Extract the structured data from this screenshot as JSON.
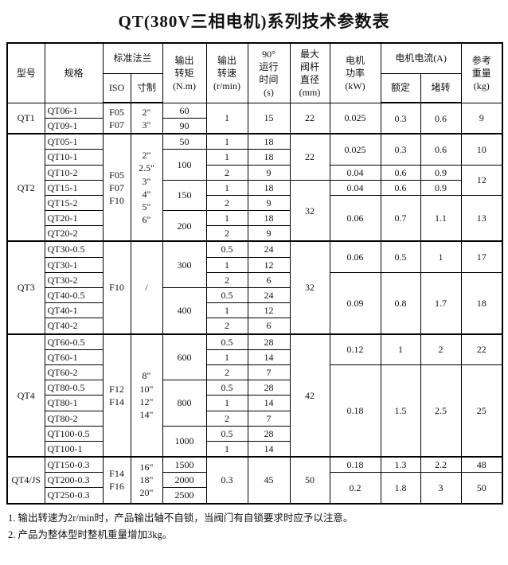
{
  "title": "QT(380V三相电机)系列技术参数表",
  "table": {
    "header": {
      "model": "型号",
      "spec": "规格",
      "flange": "标准法兰",
      "iso": "ISO",
      "inch": "寸制",
      "torque": "输出\n转矩\n(N.m)",
      "speed": "输出\n转速\n(r/min)",
      "time": "90°\n运行\n时间\n(s)",
      "stem": "最大\n阀杆\n直径\n(mm)",
      "power": "电机\n功率\n(kW)",
      "current": "电机电流(A)",
      "rated": "额定",
      "stall": "堵转",
      "weight": "参考\n重量\n(kg)"
    },
    "section_start_rows": [
      2,
      9,
      15,
      23
    ],
    "body_rows": [
      [
        {
          "t": "QT1",
          "rs": 2
        },
        {
          "t": "QT06-1",
          "cls": "spec"
        },
        {
          "t": "F05\nF07",
          "rs": 2
        },
        {
          "t": "2\"\n3\"",
          "rs": 2
        },
        {
          "t": "60"
        },
        {
          "t": "1",
          "rs": 2
        },
        {
          "t": "15",
          "rs": 2
        },
        {
          "t": "22",
          "rs": 2
        },
        {
          "t": "0.025",
          "rs": 2
        },
        {
          "t": "0.3",
          "rs": 2
        },
        {
          "t": "0.6",
          "rs": 2
        },
        {
          "t": "9",
          "rs": 2
        }
      ],
      [
        {
          "t": "QT09-1",
          "cls": "spec"
        },
        {
          "t": "90"
        }
      ],
      [
        {
          "t": "QT2",
          "rs": 7
        },
        {
          "t": "QT05-1",
          "cls": "spec"
        },
        {
          "t": "F05\nF07\nF10",
          "rs": 7
        },
        {
          "t": "2\"\n2.5\"\n3\"\n4\"\n5\"\n6\"",
          "rs": 7
        },
        {
          "t": "50"
        },
        {
          "t": "1"
        },
        {
          "t": "18"
        },
        {
          "t": "22",
          "rs": 3
        },
        {
          "t": "0.025",
          "rs": 2
        },
        {
          "t": "0.3",
          "rs": 2
        },
        {
          "t": "0.6",
          "rs": 2
        },
        {
          "t": "10",
          "rs": 2
        }
      ],
      [
        {
          "t": "QT10-1",
          "cls": "spec"
        },
        {
          "t": "100",
          "rs": 2
        },
        {
          "t": "1"
        },
        {
          "t": "18"
        }
      ],
      [
        {
          "t": "QT10-2",
          "cls": "spec"
        },
        {
          "t": "2"
        },
        {
          "t": "9"
        },
        {
          "t": "0.04"
        },
        {
          "t": "0.6"
        },
        {
          "t": "0.9"
        },
        {
          "t": "12",
          "rs": 2
        }
      ],
      [
        {
          "t": "QT15-1",
          "cls": "spec"
        },
        {
          "t": "150",
          "rs": 2
        },
        {
          "t": "1"
        },
        {
          "t": "18"
        },
        {
          "t": "32",
          "rs": 4
        },
        {
          "t": "0.04"
        },
        {
          "t": "0.6"
        },
        {
          "t": "0.9"
        }
      ],
      [
        {
          "t": "QT15-2",
          "cls": "spec"
        },
        {
          "t": "2"
        },
        {
          "t": "9"
        },
        {
          "t": "0.06",
          "rs": 3
        },
        {
          "t": "0.7",
          "rs": 3
        },
        {
          "t": "1.1",
          "rs": 3
        },
        {
          "t": "13",
          "rs": 3
        }
      ],
      [
        {
          "t": "QT20-1",
          "cls": "spec"
        },
        {
          "t": "200",
          "rs": 2
        },
        {
          "t": "1"
        },
        {
          "t": "18"
        }
      ],
      [
        {
          "t": "QT20-2",
          "cls": "spec"
        },
        {
          "t": "2"
        },
        {
          "t": "9"
        }
      ],
      [
        {
          "t": "QT3",
          "rs": 6
        },
        {
          "t": "QT30-0.5",
          "cls": "spec"
        },
        {
          "t": "F10",
          "rs": 6
        },
        {
          "t": "/",
          "rs": 6,
          "cls": "slash"
        },
        {
          "t": "300",
          "rs": 3
        },
        {
          "t": "0.5"
        },
        {
          "t": "24"
        },
        {
          "t": "32",
          "rs": 6
        },
        {
          "t": "0.06",
          "rs": 2
        },
        {
          "t": "0.5",
          "rs": 2
        },
        {
          "t": "1",
          "rs": 2
        },
        {
          "t": "17",
          "rs": 2
        }
      ],
      [
        {
          "t": "QT30-1",
          "cls": "spec"
        },
        {
          "t": "1"
        },
        {
          "t": "12"
        }
      ],
      [
        {
          "t": "QT30-2",
          "cls": "spec"
        },
        {
          "t": "2"
        },
        {
          "t": "6"
        },
        {
          "t": "0.09",
          "rs": 4
        },
        {
          "t": "0.8",
          "rs": 4
        },
        {
          "t": "1.7",
          "rs": 4
        },
        {
          "t": "18",
          "rs": 4
        }
      ],
      [
        {
          "t": "QT40-0.5",
          "cls": "spec"
        },
        {
          "t": "400",
          "rs": 3
        },
        {
          "t": "0.5"
        },
        {
          "t": "24"
        }
      ],
      [
        {
          "t": "QT40-1",
          "cls": "spec"
        },
        {
          "t": "1"
        },
        {
          "t": "12"
        }
      ],
      [
        {
          "t": "QT40-2",
          "cls": "spec"
        },
        {
          "t": "2"
        },
        {
          "t": "6"
        }
      ],
      [
        {
          "t": "QT4",
          "rs": 8
        },
        {
          "t": "QT60-0.5",
          "cls": "spec"
        },
        {
          "t": "F12\nF14",
          "rs": 8
        },
        {
          "t": "8\"\n10\"\n12\"\n14\"",
          "rs": 8
        },
        {
          "t": "600",
          "rs": 3
        },
        {
          "t": "0.5"
        },
        {
          "t": "28"
        },
        {
          "t": "42",
          "rs": 8
        },
        {
          "t": "0.12",
          "rs": 2
        },
        {
          "t": "1",
          "rs": 2
        },
        {
          "t": "2",
          "rs": 2
        },
        {
          "t": "22",
          "rs": 2
        }
      ],
      [
        {
          "t": "QT60-1",
          "cls": "spec"
        },
        {
          "t": "1"
        },
        {
          "t": "14"
        }
      ],
      [
        {
          "t": "QT60-2",
          "cls": "spec"
        },
        {
          "t": "2"
        },
        {
          "t": "7"
        },
        {
          "t": "0.18",
          "rs": 6
        },
        {
          "t": "1.5",
          "rs": 6
        },
        {
          "t": "2.5",
          "rs": 6
        },
        {
          "t": "25",
          "rs": 6
        }
      ],
      [
        {
          "t": "QT80-0.5",
          "cls": "spec"
        },
        {
          "t": "800",
          "rs": 3
        },
        {
          "t": "0.5"
        },
        {
          "t": "28"
        }
      ],
      [
        {
          "t": "QT80-1",
          "cls": "spec"
        },
        {
          "t": "1"
        },
        {
          "t": "14"
        }
      ],
      [
        {
          "t": "QT80-2",
          "cls": "spec"
        },
        {
          "t": "2"
        },
        {
          "t": "7"
        }
      ],
      [
        {
          "t": "QT100-0.5",
          "cls": "spec"
        },
        {
          "t": "1000",
          "rs": 2
        },
        {
          "t": "0.5"
        },
        {
          "t": "28"
        }
      ],
      [
        {
          "t": "QT100-1",
          "cls": "spec"
        },
        {
          "t": "1"
        },
        {
          "t": "14"
        }
      ],
      [
        {
          "t": "QT4/JS",
          "rs": 3
        },
        {
          "t": "QT150-0.3",
          "cls": "spec"
        },
        {
          "t": "F14\nF16",
          "rs": 3
        },
        {
          "t": "16\"\n18\"\n20\"",
          "rs": 3
        },
        {
          "t": "1500"
        },
        {
          "t": "0.3",
          "rs": 3
        },
        {
          "t": "45",
          "rs": 3
        },
        {
          "t": "50",
          "rs": 3
        },
        {
          "t": "0.18"
        },
        {
          "t": "1.3"
        },
        {
          "t": "2.2"
        },
        {
          "t": "48"
        }
      ],
      [
        {
          "t": "QT200-0.3",
          "cls": "spec"
        },
        {
          "t": "2000"
        },
        {
          "t": "0.2",
          "rs": 2
        },
        {
          "t": "1.8",
          "rs": 2
        },
        {
          "t": "3",
          "rs": 2
        },
        {
          "t": "50",
          "rs": 2
        }
      ],
      [
        {
          "t": "QT250-0.3",
          "cls": "spec"
        },
        {
          "t": "2500"
        }
      ]
    ]
  },
  "notes": [
    "1. 输出转速为2r/min时，产品输出轴不自锁，当阀门有自锁要求时应予以注意。",
    "2. 产品为整体型时整机重量增加3kg。"
  ]
}
